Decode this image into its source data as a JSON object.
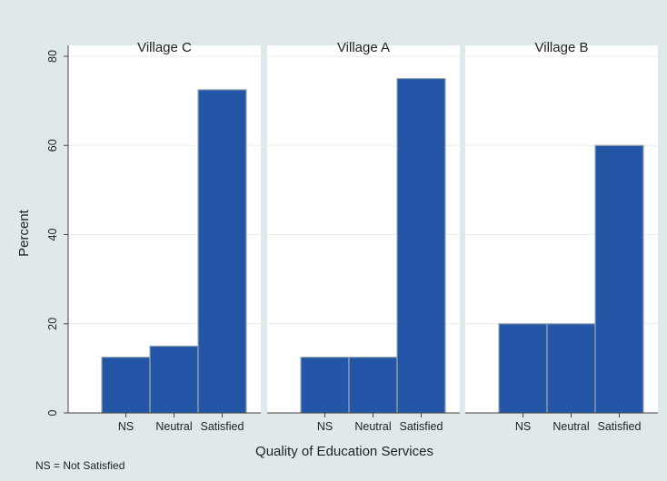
{
  "chart_data": {
    "type": "bar",
    "categories": [
      "NS",
      "Neutral",
      "Satisfied"
    ],
    "panels": [
      {
        "title": "Village C",
        "values": [
          12.5,
          15,
          72.5
        ]
      },
      {
        "title": "Village A",
        "values": [
          12.5,
          12.5,
          75
        ]
      },
      {
        "title": "Village B",
        "values": [
          20,
          20,
          60
        ]
      }
    ],
    "xlabel": "Quality of Education Services",
    "ylabel": "Percent",
    "ylim": [
      0,
      80
    ],
    "yticks": [
      0,
      20,
      40,
      60,
      80
    ],
    "grid": true,
    "note": "NS = Not Satisfied",
    "colors": {
      "bar": "#2356a6",
      "bar_edge": "#9aa6b0",
      "panel_bg": "#ffffff",
      "outer_bg": "#dfe9ec",
      "grid": "#e6eef0"
    }
  }
}
